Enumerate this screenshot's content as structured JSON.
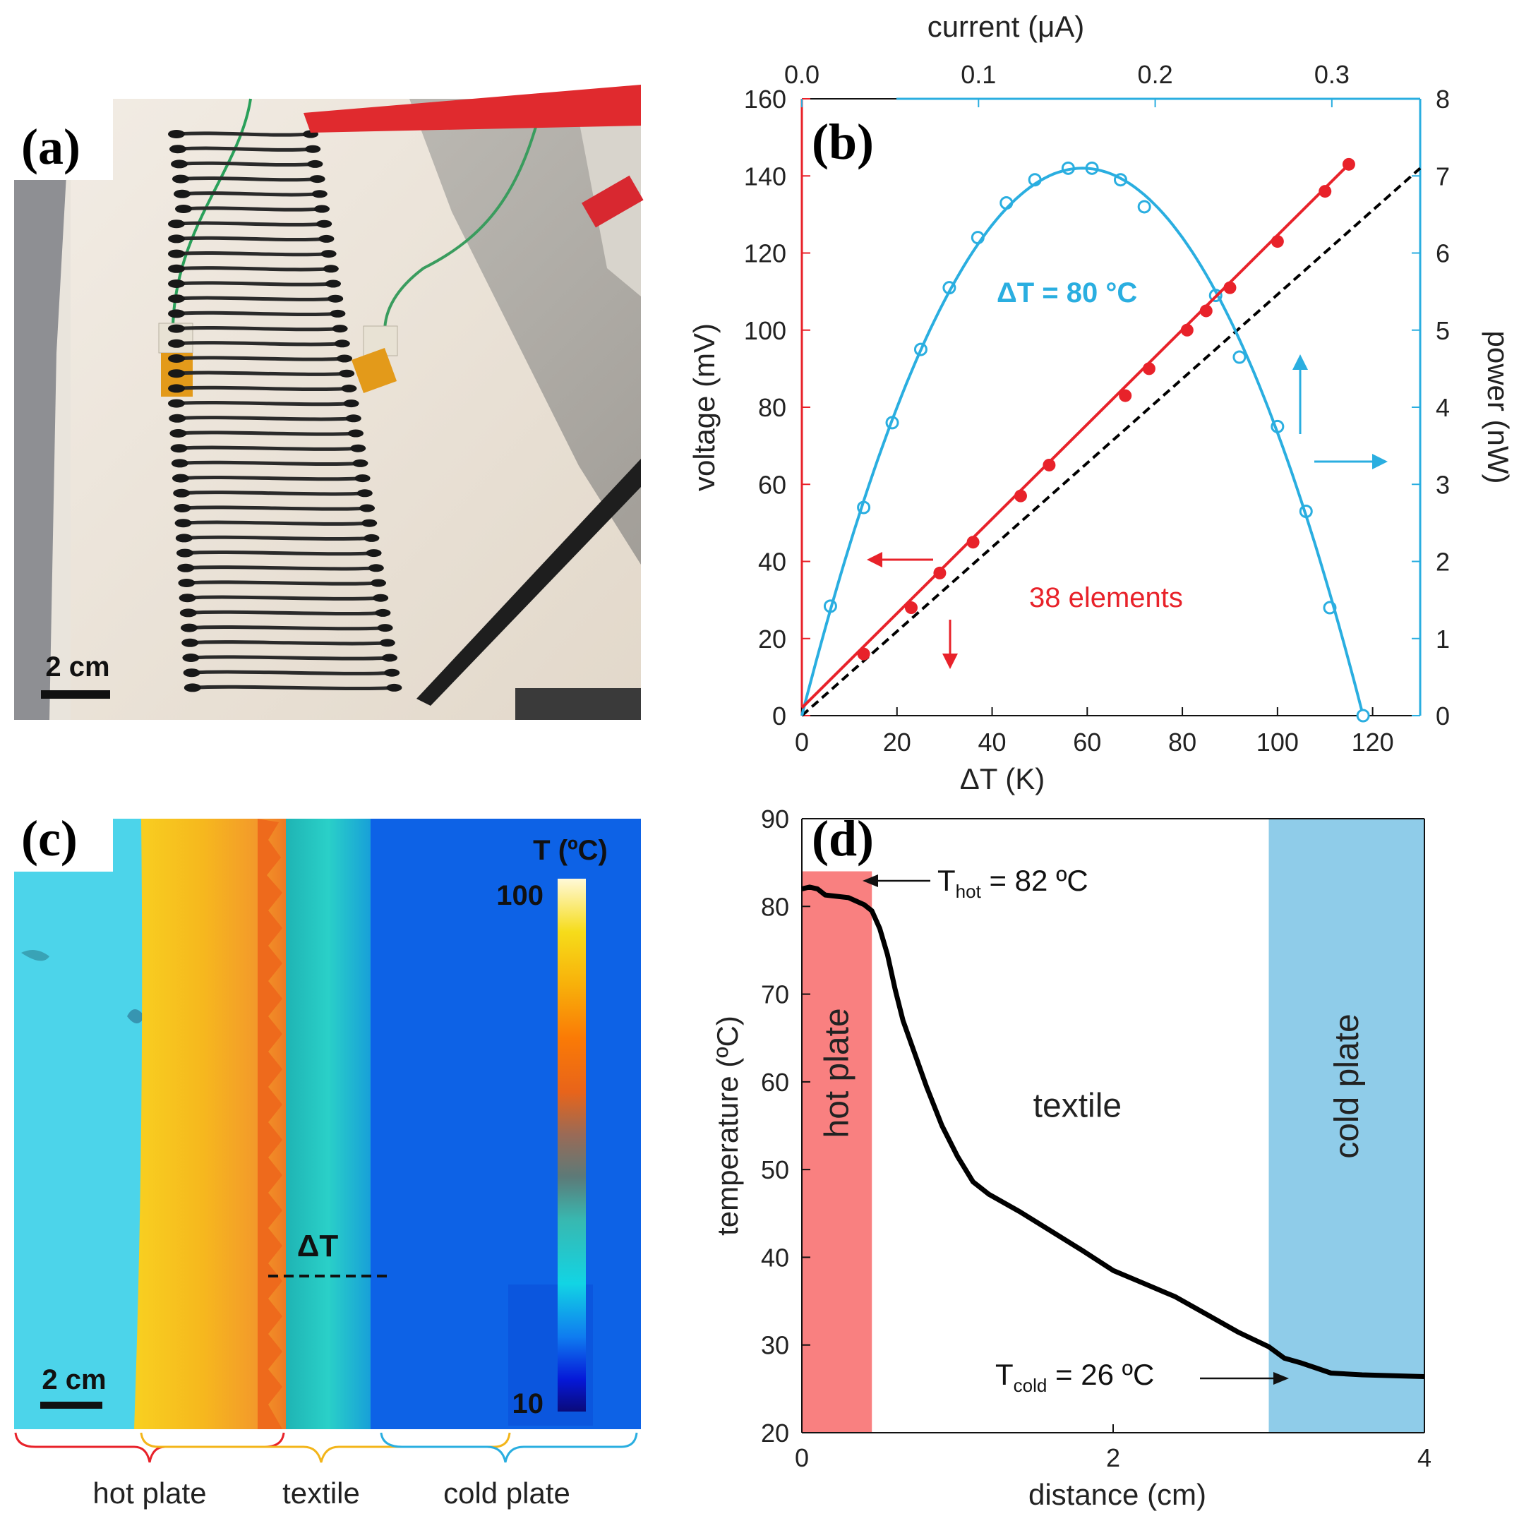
{
  "panels": {
    "a": {
      "label": "(a)",
      "scale_bar": "2 cm"
    },
    "c": {
      "label": "(c)",
      "scale_bar": "2 cm",
      "colorbar_title": "T (ºC)",
      "colorbar_max": "100",
      "colorbar_min": "10",
      "delta_label": "ΔT",
      "brackets": [
        "hot plate",
        "textile",
        "cold plate"
      ]
    }
  },
  "chart_data": [
    {
      "id": "b",
      "label": "(b)",
      "type": "line",
      "xlabel": "ΔT (K)",
      "ylabel_left": "voltage (mV)",
      "ylabel_right": "power (nW)",
      "top_axis_label": "current (μA)",
      "xlim": [
        0,
        130
      ],
      "ylim_left": [
        0,
        160
      ],
      "ylim_right": [
        0,
        8
      ],
      "top_xlim": [
        0,
        0.35
      ],
      "x_ticks": [
        "0",
        "20",
        "40",
        "60",
        "80",
        "100",
        "120"
      ],
      "y_ticks_left": [
        "0",
        "20",
        "40",
        "60",
        "80",
        "100",
        "120",
        "140",
        "160"
      ],
      "y_ticks_right": [
        "0",
        "1",
        "2",
        "3",
        "4",
        "5",
        "6",
        "7",
        "8"
      ],
      "top_ticks": [
        "0.0",
        "0.1",
        "0.2",
        "0.3"
      ],
      "annotations": {
        "curve_label": "ΔT = 80 °C",
        "elements_label": "38 elements"
      },
      "series": [
        {
          "name": "voltage",
          "axis": "left",
          "color": "#e8222a",
          "x": [
            13,
            23,
            29,
            36,
            46,
            52,
            68,
            73,
            81,
            85,
            90,
            100,
            110,
            115
          ],
          "y": [
            16,
            28,
            37,
            45,
            57,
            65,
            83,
            90,
            100,
            105,
            111,
            123,
            136,
            143
          ],
          "fit": {
            "x": [
              0,
              115
            ],
            "y": [
              2,
              143
            ]
          }
        },
        {
          "name": "reference",
          "axis": "left",
          "color": "#000000",
          "dashed": true,
          "x": [
            0,
            130
          ],
          "y": [
            0,
            142
          ]
        },
        {
          "name": "power",
          "axis": "right",
          "color": "#2aaee0",
          "x": [
            6,
            13,
            19,
            25,
            31,
            37,
            43,
            49,
            56,
            61,
            67,
            72,
            87,
            92,
            100,
            106,
            111
          ],
          "y": [
            1.42,
            2.7,
            3.8,
            4.75,
            5.55,
            6.2,
            6.65,
            6.95,
            7.1,
            7.1,
            6.95,
            6.6,
            5.45,
            4.65,
            3.75,
            2.65,
            1.4
          ],
          "fit_peak": {
            "x": 59,
            "y": 7.1,
            "zero": 118
          }
        }
      ]
    },
    {
      "id": "d",
      "label": "(d)",
      "type": "line",
      "xlabel": "distance (cm)",
      "ylabel": "temperature (ºC)",
      "xlim": [
        0,
        4
      ],
      "ylim": [
        20,
        90
      ],
      "x_ticks": [
        "0",
        "2",
        "4"
      ],
      "y_ticks": [
        "20",
        "30",
        "40",
        "50",
        "60",
        "70",
        "80",
        "90"
      ],
      "regions": [
        {
          "name": "hot plate",
          "from": 0,
          "to": 0.45,
          "color": "#f98080"
        },
        {
          "name": "textile",
          "from": 0.45,
          "to": 3.0
        },
        {
          "name": "cold plate",
          "from": 3.0,
          "to": 4.0,
          "color": "#8fcce9"
        }
      ],
      "annotations": {
        "t_hot_base": "T",
        "t_hot_sub": "hot",
        "t_hot_value": " = 82 ºC",
        "t_cold_base": "T",
        "t_cold_sub": "cold",
        "t_cold_value": " = 26 ºC"
      },
      "series": [
        {
          "name": "temperature profile",
          "color": "#000000",
          "x": [
            0.0,
            0.05,
            0.1,
            0.15,
            0.2,
            0.3,
            0.4,
            0.45,
            0.5,
            0.55,
            0.6,
            0.65,
            0.7,
            0.8,
            0.9,
            1.0,
            1.1,
            1.2,
            1.4,
            1.6,
            1.8,
            2.0,
            2.2,
            2.4,
            2.6,
            2.8,
            3.0,
            3.1,
            3.2,
            3.3,
            3.4,
            3.6,
            3.8,
            4.0
          ],
          "y": [
            82,
            82.2,
            82,
            81.3,
            81.2,
            81,
            80.2,
            79.5,
            77.5,
            74.5,
            70.5,
            67,
            64.5,
            59.5,
            55,
            51.5,
            48.6,
            47.2,
            45.2,
            43,
            40.8,
            38.5,
            37,
            35.5,
            33.5,
            31.5,
            29.8,
            28.5,
            28,
            27.4,
            26.8,
            26.6,
            26.5,
            26.4
          ]
        }
      ]
    }
  ]
}
